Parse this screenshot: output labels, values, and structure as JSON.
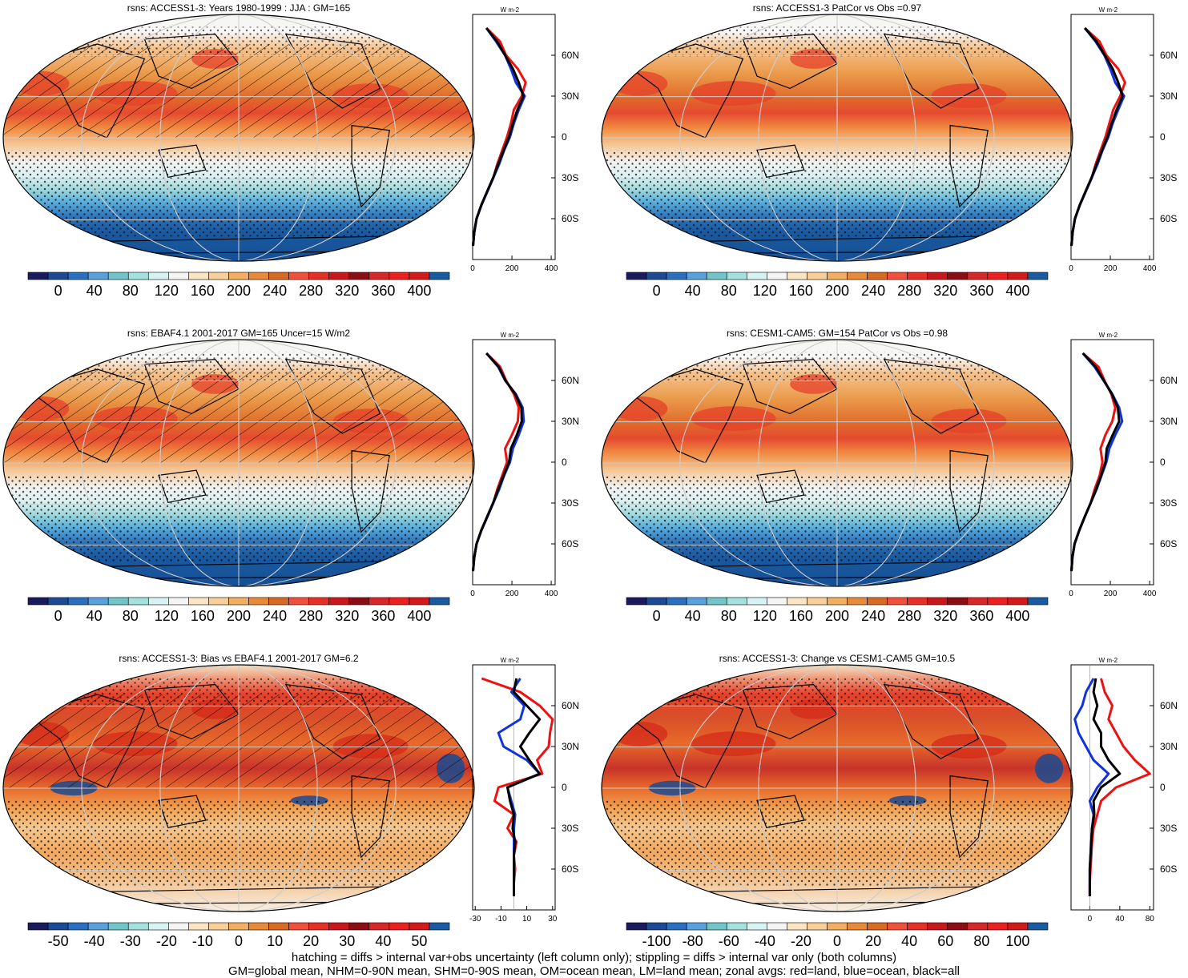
{
  "chart_data": [
    {
      "type": "heatmap",
      "title": "rsns: ACCESS1-3: Years 1980-1999 : JJA : GM=165",
      "colorbar_ticks": [
        "0",
        "40",
        "80",
        "120",
        "160",
        "200",
        "240",
        "280",
        "320",
        "360",
        "400"
      ],
      "colorbar_range": [
        0,
        400
      ],
      "profile": {
        "unit": "W m-2",
        "xticks": [
          "0",
          "200",
          "400"
        ],
        "xlim": [
          0,
          420
        ],
        "yticks": [
          "60N",
          "30N",
          "0",
          "30S",
          "60S"
        ],
        "lat": [
          80,
          70,
          60,
          50,
          40,
          30,
          20,
          10,
          0,
          -10,
          -20,
          -30,
          -40,
          -50,
          -60,
          -70,
          -80
        ],
        "series": [
          {
            "color": "#ee1111",
            "values": [
              70,
              140,
              170,
              230,
              270,
              250,
              210,
              195,
              175,
              150,
              125,
              105,
              75,
              45,
              20,
              8,
              2
            ]
          },
          {
            "color": "#1133dd",
            "values": [
              70,
              120,
              165,
              195,
              220,
              265,
              235,
              210,
              190,
              160,
              135,
              105,
              75,
              45,
              20,
              8,
              2
            ]
          },
          {
            "color": "#000000",
            "values": [
              70,
              125,
              165,
              205,
              235,
              258,
              228,
              205,
              185,
              157,
              130,
              104,
              74,
              44,
              20,
              8,
              2
            ]
          }
        ]
      }
    },
    {
      "type": "heatmap",
      "title": "rsns: ACCESS1-3 PatCor vs Obs =0.97",
      "colorbar_ticks": [
        "0",
        "40",
        "80",
        "120",
        "160",
        "200",
        "240",
        "280",
        "320",
        "360",
        "400"
      ],
      "colorbar_range": [
        0,
        400
      ],
      "profile": {
        "unit": "W m-2",
        "xticks": [
          "0",
          "200",
          "400"
        ],
        "xlim": [
          0,
          420
        ],
        "yticks": [
          "60N",
          "30N",
          "0",
          "30S",
          "60S"
        ],
        "lat": [
          80,
          70,
          60,
          50,
          40,
          30,
          20,
          10,
          0,
          -10,
          -20,
          -30,
          -40,
          -50,
          -60,
          -70,
          -80
        ],
        "series": [
          {
            "color": "#ee1111",
            "values": [
              70,
              145,
              180,
              240,
              275,
              250,
              215,
              195,
              175,
              150,
              125,
              105,
              75,
              45,
              20,
              8,
              2
            ]
          },
          {
            "color": "#1133dd",
            "values": [
              70,
              125,
              170,
              200,
              225,
              270,
              240,
              212,
              190,
              160,
              135,
              105,
              75,
              45,
              20,
              8,
              2
            ]
          },
          {
            "color": "#000000",
            "values": [
              70,
              130,
              172,
              212,
              240,
              262,
              232,
              207,
              185,
              157,
              130,
              104,
              74,
              44,
              20,
              8,
              2
            ]
          }
        ]
      }
    },
    {
      "type": "heatmap",
      "title": "rsns: EBAF4.1 2001-2017 GM=165 Uncer=15 W/m2",
      "colorbar_ticks": [
        "0",
        "40",
        "80",
        "120",
        "160",
        "200",
        "240",
        "280",
        "320",
        "360",
        "400"
      ],
      "colorbar_range": [
        0,
        400
      ],
      "profile": {
        "unit": "W m-2",
        "xticks": [
          "0",
          "200",
          "400"
        ],
        "xlim": [
          0,
          420
        ],
        "yticks": [
          "60N",
          "30N",
          "0",
          "30S",
          "60S"
        ],
        "lat": [
          80,
          70,
          60,
          50,
          40,
          30,
          20,
          10,
          0,
          -10,
          -20,
          -30,
          -40,
          -50,
          -60,
          -70,
          -80
        ],
        "series": [
          {
            "color": "#ee1111",
            "values": [
              70,
              140,
              170,
              210,
              235,
              230,
              200,
              165,
              175,
              150,
              125,
              105,
              75,
              45,
              20,
              8,
              2
            ]
          },
          {
            "color": "#1133dd",
            "values": [
              70,
              130,
              165,
              220,
              255,
              260,
              235,
              205,
              190,
              160,
              135,
              105,
              75,
              45,
              20,
              8,
              2
            ]
          },
          {
            "color": "#000000",
            "values": [
              70,
              133,
              167,
              217,
              248,
              250,
              225,
              195,
              185,
              157,
              130,
              104,
              74,
              44,
              20,
              8,
              2
            ]
          }
        ]
      }
    },
    {
      "type": "heatmap",
      "title": "rsns: CESM1-CAM5: GM=154 PatCor vs Obs =0.98",
      "colorbar_ticks": [
        "0",
        "40",
        "80",
        "120",
        "160",
        "200",
        "240",
        "280",
        "320",
        "360",
        "400"
      ],
      "colorbar_range": [
        0,
        400
      ],
      "profile": {
        "unit": "W m-2",
        "xticks": [
          "0",
          "200",
          "400"
        ],
        "xlim": [
          0,
          420
        ],
        "yticks": [
          "60N",
          "30N",
          "0",
          "30S",
          "60S"
        ],
        "lat": [
          80,
          70,
          60,
          50,
          40,
          30,
          20,
          10,
          0,
          -10,
          -20,
          -30,
          -40,
          -50,
          -60,
          -70,
          -80
        ],
        "series": [
          {
            "color": "#ee1111",
            "values": [
              60,
              140,
              170,
              205,
              225,
              210,
              175,
              150,
              160,
              145,
              120,
              100,
              70,
              42,
              18,
              7,
              2
            ]
          },
          {
            "color": "#1133dd",
            "values": [
              60,
              120,
              165,
              210,
              245,
              260,
              225,
              195,
              180,
              155,
              130,
              100,
              70,
              42,
              18,
              7,
              2
            ]
          },
          {
            "color": "#000000",
            "values": [
              60,
              125,
              167,
              208,
              238,
              245,
              212,
              182,
              175,
              152,
              127,
              100,
              70,
              42,
              18,
              7,
              2
            ]
          }
        ]
      }
    },
    {
      "type": "heatmap",
      "title": "rsns: ACCESS1-3: Bias vs EBAF4.1 2001-2017 GM=6.2",
      "colorbar_ticks": [
        "-50",
        "-40",
        "-30",
        "-20",
        "-10",
        "0",
        "10",
        "20",
        "30",
        "40",
        "50"
      ],
      "colorbar_range": [
        -50,
        50
      ],
      "profile": {
        "unit": "W m-2",
        "xticks": [
          "-30",
          "-10",
          "10",
          "30"
        ],
        "xlim": [
          -32,
          32
        ],
        "yticks": [
          "60N",
          "30N",
          "0",
          "30S",
          "60S"
        ],
        "lat": [
          80,
          70,
          60,
          50,
          40,
          30,
          20,
          10,
          0,
          -10,
          -20,
          -30,
          -40,
          -50,
          -60,
          -70,
          -80
        ],
        "series": [
          {
            "color": "#ee1111",
            "values": [
              -25,
              5,
              20,
              30,
              28,
              27,
              18,
              22,
              -12,
              -15,
              0,
              -5,
              2,
              0,
              1,
              0,
              0
            ]
          },
          {
            "color": "#1133dd",
            "values": [
              5,
              -2,
              8,
              5,
              -12,
              -8,
              10,
              20,
              -5,
              -2,
              1,
              0,
              0,
              0,
              0,
              0,
              0
            ]
          },
          {
            "color": "#000000",
            "values": [
              2,
              0,
              10,
              20,
              12,
              5,
              12,
              20,
              -5,
              -3,
              0,
              -1,
              1,
              0,
              0,
              0,
              0
            ]
          }
        ]
      }
    },
    {
      "type": "heatmap",
      "title": "rsns: ACCESS1-3: Change vs CESM1-CAM5 GM=10.5",
      "colorbar_ticks": [
        "-100",
        "-80",
        "-60",
        "-40",
        "-20",
        "0",
        "20",
        "40",
        "60",
        "80",
        "100"
      ],
      "colorbar_range": [
        -100,
        100
      ],
      "profile": {
        "unit": "W m-2",
        "xticks": [
          "0",
          "40",
          "80"
        ],
        "xlim": [
          -25,
          85
        ],
        "yticks": [
          "60N",
          "30N",
          "0",
          "30S",
          "60S"
        ],
        "lat": [
          80,
          70,
          60,
          50,
          40,
          30,
          20,
          10,
          0,
          -10,
          -20,
          -30,
          -40,
          -50,
          -60,
          -70,
          -80
        ],
        "series": [
          {
            "color": "#ee1111",
            "values": [
              15,
              20,
              30,
              25,
              35,
              45,
              60,
              80,
              35,
              15,
              10,
              5,
              3,
              2,
              1,
              0,
              0
            ]
          },
          {
            "color": "#1133dd",
            "values": [
              5,
              -5,
              -10,
              -20,
              -15,
              -5,
              5,
              25,
              10,
              0,
              5,
              3,
              2,
              1,
              0,
              0,
              0
            ]
          },
          {
            "color": "#000000",
            "values": [
              8,
              5,
              10,
              5,
              15,
              15,
              25,
              40,
              15,
              5,
              6,
              3,
              2,
              1,
              0,
              0,
              0
            ]
          }
        ]
      }
    }
  ],
  "footer": {
    "line1": "hatching = diffs > internal var+obs uncertainty (left column only); stippling = diffs > internal var only (both columns)",
    "line2": "GM=global mean, NHM=0-90N mean, SHM=0-90S mean, OM=ocean mean, LM=land mean; zonal avgs: red=land, blue=ocean, black=all"
  }
}
